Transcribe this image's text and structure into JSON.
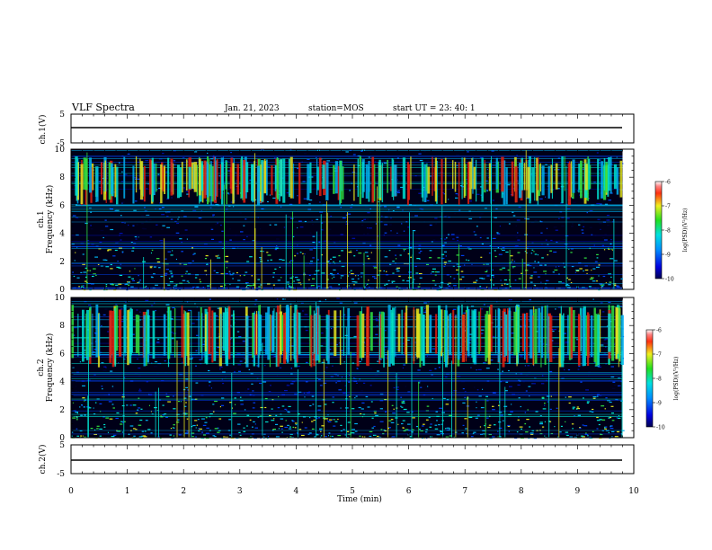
{
  "header": {
    "title": "VLF Spectra",
    "date": "Jan. 21, 2023",
    "station": "station=MOS",
    "start": "start UT =  23: 40: 1"
  },
  "colors": {
    "background_dark": "#000010",
    "noise_blue": "#1428c8",
    "band_cyan": "#00d8e8",
    "band_green": "#40e040",
    "band_yellow": "#e8e820",
    "band_red": "#d81818"
  },
  "chart_data": [
    {
      "type": "line",
      "name": "ch1-waveform",
      "ylabel": "ch.1(V)",
      "ylim": [
        -5,
        5
      ],
      "yticks": [
        "5",
        "-5"
      ],
      "x": [
        0,
        10
      ],
      "values": [
        0,
        0
      ]
    },
    {
      "type": "heatmap",
      "name": "ch1-spectrogram",
      "ylabel_top": "ch.1",
      "ylabel": "Frequency (kHz)",
      "ylim": [
        0,
        10
      ],
      "yticks": [
        "0",
        "2",
        "4",
        "6",
        "8",
        "10"
      ],
      "data_end_min": 9.8,
      "emission_band_khz": [
        6,
        9.5
      ],
      "colorbar": {
        "label": "log(PSD)(V²/Hz)",
        "range": [
          -10,
          -6
        ],
        "ticks": [
          "-6",
          "-7",
          "-8",
          "-9",
          "-10"
        ]
      }
    },
    {
      "type": "heatmap",
      "name": "ch2-spectrogram",
      "ylabel_top": "ch.2",
      "ylabel": "Frequency (kHz)",
      "ylim": [
        0,
        10
      ],
      "yticks": [
        "0",
        "2",
        "4",
        "6",
        "8",
        "10"
      ],
      "data_end_min": 9.8,
      "emission_band_khz": [
        5,
        9.5
      ],
      "colorbar": {
        "label": "log(PSD)(V²/Hz)",
        "range": [
          -10,
          -6
        ],
        "ticks": [
          "-6",
          "-7",
          "-8",
          "-9",
          "-10"
        ]
      }
    },
    {
      "type": "line",
      "name": "ch2-waveform",
      "ylabel": "ch.2(V)",
      "ylim": [
        -5,
        5
      ],
      "yticks": [
        "5",
        "-5"
      ],
      "x": [
        0,
        10
      ],
      "values": [
        0,
        0
      ]
    }
  ],
  "xaxis": {
    "label": "Time (min)",
    "range": [
      0,
      10
    ],
    "ticks": [
      "0",
      "1",
      "2",
      "3",
      "4",
      "5",
      "6",
      "7",
      "8",
      "9",
      "10"
    ]
  }
}
